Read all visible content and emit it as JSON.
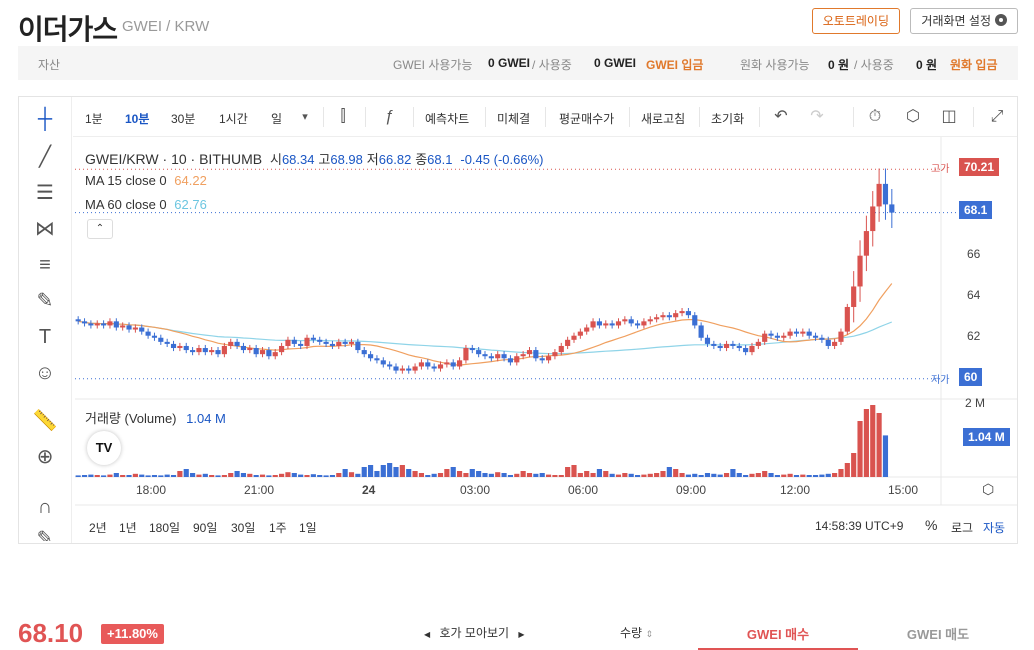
{
  "header": {
    "title": "이더가스",
    "pair": "GWEI / KRW",
    "auto_trade_label": "오토트레이딩",
    "settings_label": "거래화면 설정"
  },
  "asset_bar": {
    "asset_label": "자산",
    "gwei_available_label": "GWEI 사용가능",
    "gwei_available_value": "0 GWEI",
    "in_use_label": "/ 사용중",
    "gwei_in_use_value": "0 GWEI",
    "gwei_deposit_label": "GWEI 입금",
    "krw_available_label": "원화 사용가능",
    "krw_available_value": "0 원",
    "krw_in_use_label": "/ 사용중",
    "krw_in_use_value": "0 원",
    "krw_deposit_label": "원화 입금"
  },
  "toolbar": {
    "intervals": [
      "1분",
      "10분",
      "30분",
      "1시간",
      "일"
    ],
    "active_interval": "10분",
    "forecast": "예측차트",
    "unfilled": "미체결",
    "avg_price": "평균매수가",
    "refresh": "새로고침",
    "reset": "초기화"
  },
  "legend": {
    "symbol": "GWEI/KRW · 10 · BITHUMB",
    "o_label": "시",
    "o": "68.34",
    "h_label": "고",
    "h": "68.98",
    "l_label": "저",
    "l": "66.82",
    "c_label": "종",
    "c": "68.1",
    "change": "-0.45 (-0.66%)",
    "ma15_label": "MA 15 close 0",
    "ma15": "64.22",
    "ma60_label": "MA 60 close 0",
    "ma60": "62.76",
    "volume_label": "거래량 (Volume)",
    "volume": "1.04 M"
  },
  "price_axis": {
    "high_tag": "고가",
    "high_value": "70.21",
    "current_value": "68.1",
    "low_tag": "저가",
    "low_value": "60",
    "ticks": [
      "66",
      "64",
      "62"
    ],
    "vol_top": "2 M",
    "vol_current": "1.04 M"
  },
  "time_axis": [
    "18:00",
    "21:00",
    "24",
    "03:00",
    "06:00",
    "09:00",
    "12:00",
    "15:00"
  ],
  "bottom_bar": {
    "ranges": [
      "2년",
      "1년",
      "180일",
      "90일",
      "30일",
      "1주",
      "1일"
    ],
    "clock": "14:58:39 UTC+9",
    "percent": "%",
    "log": "로그",
    "auto": "자동"
  },
  "footer": {
    "price": "68.10",
    "change_pct": "+11.80%",
    "orderbook_label": "호가 모아보기",
    "qty_label": "수량",
    "buy_tab": "GWEI 매수",
    "sell_tab": "GWEI 매도"
  },
  "colors": {
    "up": "#d9534f",
    "down": "#3b6fd4",
    "ma15": "#f0a060",
    "ma60": "#8fd4e8",
    "accent": "#e0792c"
  },
  "chart_data": {
    "type": "candlestick",
    "price_range": [
      59.6,
      71.2
    ],
    "closes": [
      62.8,
      62.7,
      62.6,
      62.7,
      62.6,
      62.8,
      62.5,
      62.6,
      62.4,
      62.5,
      62.3,
      62.1,
      62.0,
      61.8,
      61.7,
      61.5,
      61.6,
      61.4,
      61.3,
      61.5,
      61.3,
      61.4,
      61.2,
      61.6,
      61.8,
      61.6,
      61.4,
      61.5,
      61.2,
      61.4,
      61.1,
      61.3,
      61.6,
      61.9,
      61.7,
      61.6,
      62.0,
      61.9,
      61.8,
      61.7,
      61.6,
      61.8,
      61.7,
      61.8,
      61.4,
      61.2,
      61.0,
      60.9,
      60.7,
      60.6,
      60.4,
      60.5,
      60.4,
      60.6,
      60.8,
      60.6,
      60.5,
      60.7,
      60.8,
      60.6,
      60.9,
      61.5,
      61.4,
      61.2,
      61.1,
      61.0,
      61.2,
      61.0,
      60.8,
      61.1,
      61.2,
      61.4,
      61.0,
      60.9,
      61.1,
      61.3,
      61.6,
      61.9,
      62.1,
      62.3,
      62.5,
      62.8,
      62.6,
      62.7,
      62.6,
      62.8,
      62.9,
      62.7,
      62.6,
      62.8,
      62.9,
      63.0,
      63.1,
      63.0,
      63.2,
      63.3,
      63.1,
      62.6,
      62.0,
      61.7,
      61.6,
      61.5,
      61.7,
      61.6,
      61.5,
      61.3,
      61.6,
      61.8,
      62.2,
      62.1,
      62.0,
      62.1,
      62.3,
      62.2,
      62.3,
      62.1,
      62.0,
      61.9,
      61.6,
      61.8,
      62.3,
      63.5,
      64.5,
      66.0,
      67.2,
      68.4,
      69.5,
      68.5,
      68.1
    ],
    "volume_max": 2.0,
    "volumes": [
      0.04,
      0.05,
      0.06,
      0.05,
      0.04,
      0.06,
      0.1,
      0.05,
      0.05,
      0.08,
      0.06,
      0.04,
      0.05,
      0.04,
      0.06,
      0.05,
      0.15,
      0.2,
      0.1,
      0.06,
      0.08,
      0.05,
      0.04,
      0.05,
      0.1,
      0.15,
      0.1,
      0.08,
      0.05,
      0.06,
      0.04,
      0.05,
      0.08,
      0.12,
      0.1,
      0.06,
      0.05,
      0.07,
      0.05,
      0.04,
      0.05,
      0.1,
      0.2,
      0.12,
      0.08,
      0.25,
      0.3,
      0.15,
      0.3,
      0.35,
      0.25,
      0.3,
      0.2,
      0.15,
      0.1,
      0.05,
      0.08,
      0.1,
      0.2,
      0.25,
      0.15,
      0.1,
      0.2,
      0.15,
      0.1,
      0.08,
      0.12,
      0.1,
      0.05,
      0.08,
      0.15,
      0.1,
      0.08,
      0.1,
      0.06,
      0.05,
      0.05,
      0.25,
      0.3,
      0.1,
      0.15,
      0.1,
      0.2,
      0.15,
      0.08,
      0.06,
      0.1,
      0.08,
      0.05,
      0.06,
      0.08,
      0.1,
      0.15,
      0.25,
      0.2,
      0.1,
      0.06,
      0.08,
      0.05,
      0.1,
      0.08,
      0.06,
      0.1,
      0.2,
      0.1,
      0.05,
      0.08,
      0.1,
      0.15,
      0.1,
      0.05,
      0.06,
      0.08,
      0.05,
      0.06,
      0.05,
      0.05,
      0.06,
      0.08,
      0.1,
      0.2,
      0.35,
      0.6,
      1.4,
      1.7,
      1.8,
      1.6,
      1.04
    ]
  }
}
